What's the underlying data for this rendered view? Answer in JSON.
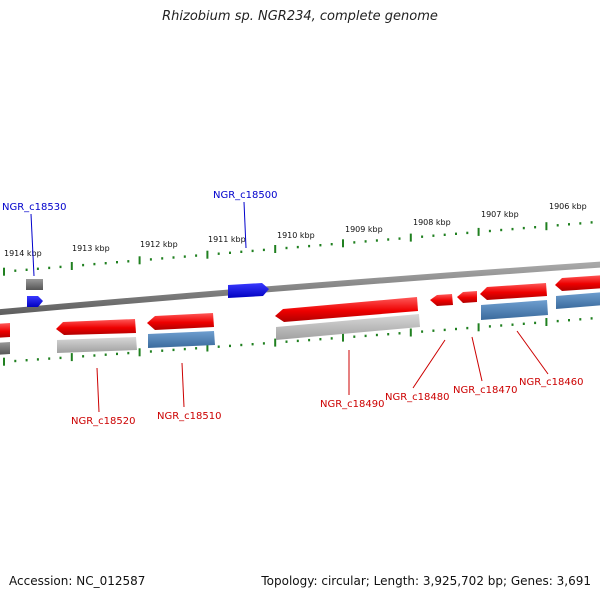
{
  "title": "Rhizobium sp. NGR234, complete genome",
  "footer": {
    "accession": "Accession: NC_012587",
    "summary": "Topology: circular; Length: 3,925,702 bp; Genes: 3,691"
  },
  "colors": {
    "backbone": "#808080",
    "ticks": "#208020",
    "cds_forward": "#ff0000",
    "cds_reverse": "#ff0000",
    "gene_grey": "#b0b0b0",
    "gene_blue": "#4a7fb5",
    "rna_blue": "#0000ff",
    "label_red": "#cc0000",
    "label_blue": "#0000cc"
  },
  "kbp_labels": [
    "1914 kbp",
    "1913 kbp",
    "1912 kbp",
    "1911 kbp",
    "1910 kbp",
    "1909 kbp",
    "1908 kbp",
    "1907 kbp",
    "1906 kbp"
  ],
  "gene_labels": [
    {
      "text": "NGR_c18530",
      "color": "blue"
    },
    {
      "text": "NGR_c18500",
      "color": "blue"
    },
    {
      "text": "NGR_c18520",
      "color": "red"
    },
    {
      "text": "NGR_c18510",
      "color": "red"
    },
    {
      "text": "NGR_c18490",
      "color": "red"
    },
    {
      "text": "NGR_c18480",
      "color": "red"
    },
    {
      "text": "NGR_c18470",
      "color": "red"
    },
    {
      "text": "NGR_c18460",
      "color": "red"
    }
  ]
}
